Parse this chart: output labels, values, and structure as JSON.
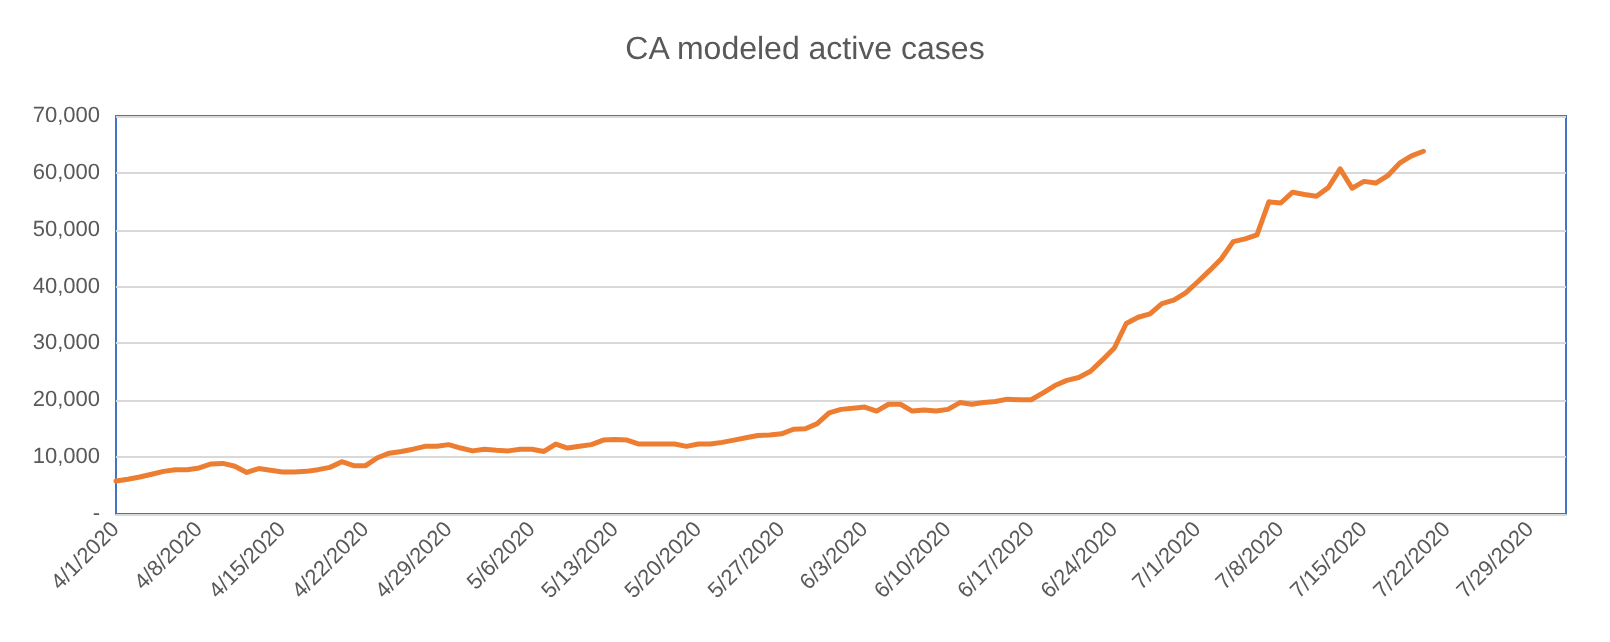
{
  "chart_data": {
    "type": "line",
    "title": "CA modeled active cases",
    "x": [
      "2020-04-01",
      "2020-04-02",
      "2020-04-03",
      "2020-04-04",
      "2020-04-05",
      "2020-04-06",
      "2020-04-07",
      "2020-04-08",
      "2020-04-09",
      "2020-04-10",
      "2020-04-11",
      "2020-04-12",
      "2020-04-13",
      "2020-04-14",
      "2020-04-15",
      "2020-04-16",
      "2020-04-17",
      "2020-04-18",
      "2020-04-19",
      "2020-04-20",
      "2020-04-21",
      "2020-04-22",
      "2020-04-23",
      "2020-04-24",
      "2020-04-25",
      "2020-04-26",
      "2020-04-27",
      "2020-04-28",
      "2020-04-29",
      "2020-04-30",
      "2020-05-01",
      "2020-05-02",
      "2020-05-03",
      "2020-05-04",
      "2020-05-05",
      "2020-05-06",
      "2020-05-07",
      "2020-05-08",
      "2020-05-09",
      "2020-05-10",
      "2020-05-11",
      "2020-05-12",
      "2020-05-13",
      "2020-05-14",
      "2020-05-15",
      "2020-05-16",
      "2020-05-17",
      "2020-05-18",
      "2020-05-19",
      "2020-05-20",
      "2020-05-21",
      "2020-05-22",
      "2020-05-23",
      "2020-05-24",
      "2020-05-25",
      "2020-05-26",
      "2020-05-27",
      "2020-05-28",
      "2020-05-29",
      "2020-05-30",
      "2020-05-31",
      "2020-06-01",
      "2020-06-02",
      "2020-06-03",
      "2020-06-04",
      "2020-06-05",
      "2020-06-06",
      "2020-06-07",
      "2020-06-08",
      "2020-06-09",
      "2020-06-10",
      "2020-06-11",
      "2020-06-12",
      "2020-06-13",
      "2020-06-14",
      "2020-06-15",
      "2020-06-16",
      "2020-06-17",
      "2020-06-18",
      "2020-06-19",
      "2020-06-20",
      "2020-06-21",
      "2020-06-22",
      "2020-06-23",
      "2020-06-24",
      "2020-06-25",
      "2020-06-26",
      "2020-06-27",
      "2020-06-28",
      "2020-06-29",
      "2020-06-30",
      "2020-07-01",
      "2020-07-02",
      "2020-07-03",
      "2020-07-04",
      "2020-07-05",
      "2020-07-06",
      "2020-07-07",
      "2020-07-08",
      "2020-07-09",
      "2020-07-10",
      "2020-07-11",
      "2020-07-12",
      "2020-07-13",
      "2020-07-14",
      "2020-07-15",
      "2020-07-16",
      "2020-07-17",
      "2020-07-18",
      "2020-07-19",
      "2020-07-20"
    ],
    "series": [
      {
        "color": "#ed7d31",
        "values": [
          5800,
          6100,
          6500,
          7000,
          7500,
          7800,
          7800,
          8100,
          8800,
          8900,
          8400,
          7300,
          8000,
          7700,
          7400,
          7400,
          7500,
          7800,
          8200,
          9200,
          8500,
          8500,
          9900,
          10700,
          11000,
          11400,
          11900,
          11900,
          12200,
          11600,
          11100,
          11400,
          11200,
          11100,
          11400,
          11400,
          11000,
          12300,
          11600,
          11900,
          12200,
          13000,
          13100,
          13000,
          12300,
          12300,
          12300,
          12300,
          11900,
          12300,
          12300,
          12600,
          13000,
          13400,
          13800,
          13900,
          14100,
          14900,
          15000,
          15900,
          17800,
          18400,
          18600,
          18800,
          18100,
          19300,
          19300,
          18100,
          18300,
          18100,
          18400,
          19600,
          19300,
          19600,
          19800,
          20200,
          20100,
          20100,
          21300,
          22600,
          23500,
          24000,
          25100,
          27100,
          29200,
          33500,
          34600,
          35200,
          37000,
          37600,
          38900,
          40800,
          42800,
          44900,
          47900,
          48400,
          49100,
          54900,
          54700,
          56600,
          56200,
          55900,
          57400,
          60700,
          57300,
          58500,
          58200,
          59500,
          61700,
          63000,
          63800
        ]
      }
    ],
    "xlim": [
      "2020-04-01",
      "2020-08-01"
    ],
    "xticks": [
      {
        "value": "2020-04-01",
        "label": "4/1/2020"
      },
      {
        "value": "2020-04-08",
        "label": "4/8/2020"
      },
      {
        "value": "2020-04-15",
        "label": "4/15/2020"
      },
      {
        "value": "2020-04-22",
        "label": "4/22/2020"
      },
      {
        "value": "2020-04-29",
        "label": "4/29/2020"
      },
      {
        "value": "2020-05-06",
        "label": "5/6/2020"
      },
      {
        "value": "2020-05-13",
        "label": "5/13/2020"
      },
      {
        "value": "2020-05-20",
        "label": "5/20/2020"
      },
      {
        "value": "2020-05-27",
        "label": "5/27/2020"
      },
      {
        "value": "2020-06-03",
        "label": "6/3/2020"
      },
      {
        "value": "2020-06-10",
        "label": "6/10/2020"
      },
      {
        "value": "2020-06-17",
        "label": "6/17/2020"
      },
      {
        "value": "2020-06-24",
        "label": "6/24/2020"
      },
      {
        "value": "2020-07-01",
        "label": "7/1/2020"
      },
      {
        "value": "2020-07-08",
        "label": "7/8/2020"
      },
      {
        "value": "2020-07-15",
        "label": "7/15/2020"
      },
      {
        "value": "2020-07-22",
        "label": "7/22/2020"
      },
      {
        "value": "2020-07-29",
        "label": "7/29/2020"
      }
    ],
    "ylim": [
      0,
      70000
    ],
    "yticks": [
      {
        "value": 0,
        "label": "-"
      },
      {
        "value": 10000,
        "label": "10,000"
      },
      {
        "value": 20000,
        "label": "20,000"
      },
      {
        "value": 30000,
        "label": "30,000"
      },
      {
        "value": 40000,
        "label": "40,000"
      },
      {
        "value": 50000,
        "label": "50,000"
      },
      {
        "value": 60000,
        "label": "60,000"
      },
      {
        "value": 70000,
        "label": "70,000"
      }
    ],
    "grid": "y",
    "marker": "none",
    "line_style": "solid"
  }
}
